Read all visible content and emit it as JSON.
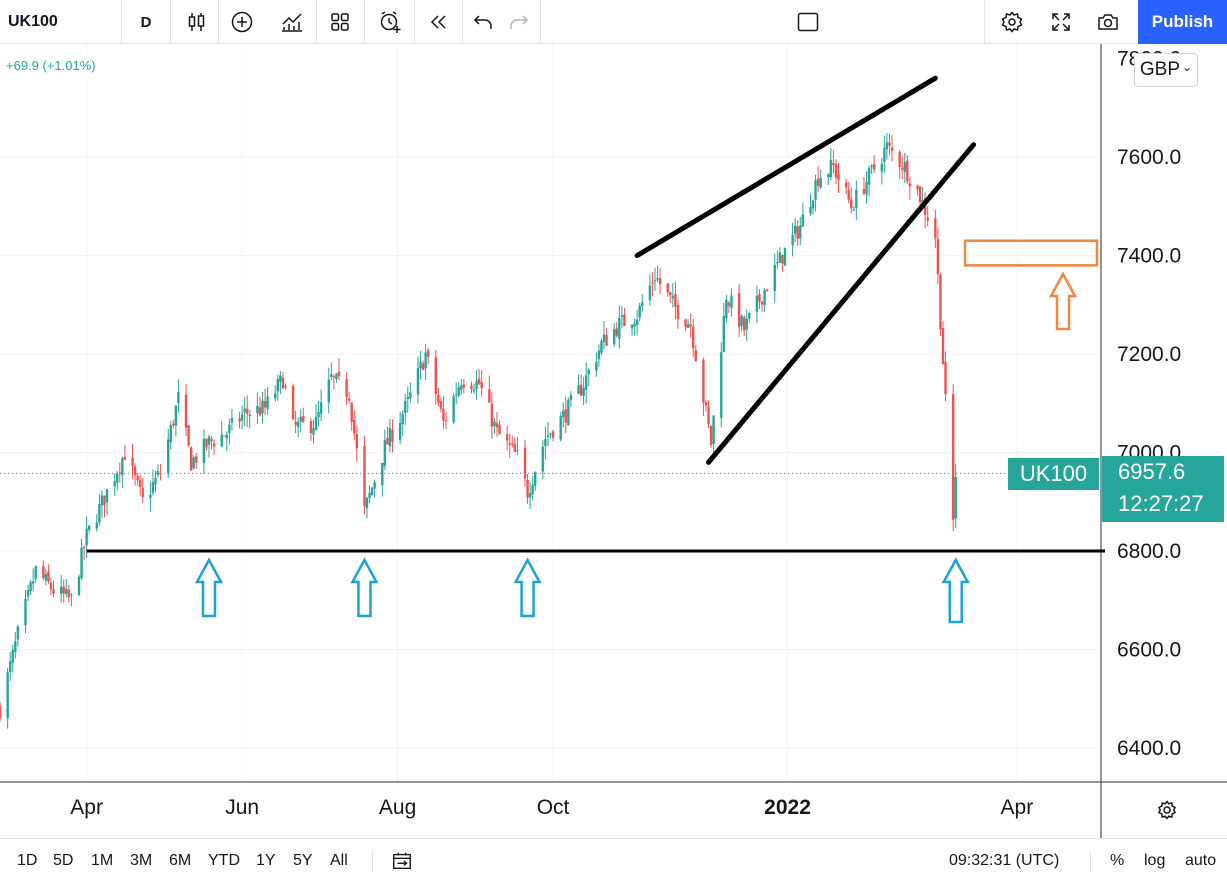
{
  "toolbar": {
    "symbol": "UK100",
    "interval": "D",
    "publish_label": "Publish",
    "icons": [
      "candles-icon",
      "add-indicator-icon",
      "indicators-icon",
      "layout-icon",
      "alert-icon",
      "replay-icon",
      "undo-icon",
      "redo-icon",
      "rectangle-icon",
      "settings-icon",
      "fullscreen-icon",
      "camera-icon"
    ]
  },
  "legend": {
    "change": "+69.9 (+1.01%)",
    "currency": "GBP",
    "currency_chevron": "⌄"
  },
  "price_scale": {
    "last_price_label": "6957.6",
    "countdown": "12:27:27",
    "symbol_label": "UK100"
  },
  "bottom": {
    "ranges": [
      "1D",
      "5D",
      "1M",
      "3M",
      "6M",
      "YTD",
      "1Y",
      "5Y",
      "All"
    ],
    "clock": "09:32:31 (UTC)",
    "percent": "%",
    "log": "log",
    "auto": "auto"
  },
  "colors": {
    "up": "#26a69a",
    "down": "#ef5350",
    "accent": "#2962ff",
    "arrow_blue": "#1aa3d6",
    "arrow_orange": "#f0883e",
    "drawing": "#000000"
  },
  "chart_data": {
    "type": "candlestick",
    "symbol": "UK100",
    "ylim": [
      6340,
      7700
    ],
    "yticks": [
      6400,
      6600,
      6800,
      7000,
      7200,
      7400,
      7600
    ],
    "ytick_labels": [
      "6400.0",
      "6600.0",
      "6800.0",
      "7000.0",
      "7200.0",
      "7400.0",
      "7600.0"
    ],
    "xticks": [
      {
        "date": "2021-04-01",
        "label": "Apr",
        "bold": false
      },
      {
        "date": "2021-06-01",
        "label": "Jun",
        "bold": false
      },
      {
        "date": "2021-08-01",
        "label": "Aug",
        "bold": false
      },
      {
        "date": "2021-10-01",
        "label": "Oct",
        "bold": false
      },
      {
        "date": "2022-01-01",
        "label": "2022",
        "bold": true
      },
      {
        "date": "2022-04-01",
        "label": "Apr",
        "bold": false
      }
    ],
    "x_start": "2021-02-26",
    "x_end": "2022-05-04",
    "last_close": 6957.6,
    "price_path": [
      [
        "2021-02-26",
        6480
      ],
      [
        "2021-03-05",
        6630
      ],
      [
        "2021-03-12",
        6760
      ],
      [
        "2021-03-19",
        6720
      ],
      [
        "2021-03-26",
        6700
      ],
      [
        "2021-04-01",
        6830
      ],
      [
        "2021-04-09",
        6920
      ],
      [
        "2021-04-16",
        7000
      ],
      [
        "2021-04-23",
        6900
      ],
      [
        "2021-04-30",
        6960
      ],
      [
        "2021-05-07",
        7110
      ],
      [
        "2021-05-12",
        6980
      ],
      [
        "2021-05-19",
        7020
      ],
      [
        "2021-05-26",
        7040
      ],
      [
        "2021-06-02",
        7080
      ],
      [
        "2021-06-10",
        7090
      ],
      [
        "2021-06-17",
        7150
      ],
      [
        "2021-06-21",
        7050
      ],
      [
        "2021-06-30",
        7060
      ],
      [
        "2021-07-06",
        7150
      ],
      [
        "2021-07-13",
        7120
      ],
      [
        "2021-07-19",
        6880
      ],
      [
        "2021-07-27",
        7010
      ],
      [
        "2021-08-05",
        7100
      ],
      [
        "2021-08-12",
        7200
      ],
      [
        "2021-08-19",
        7060
      ],
      [
        "2021-08-26",
        7150
      ],
      [
        "2021-09-02",
        7140
      ],
      [
        "2021-09-09",
        7040
      ],
      [
        "2021-09-17",
        6990
      ],
      [
        "2021-09-21",
        6920
      ],
      [
        "2021-09-28",
        7030
      ],
      [
        "2021-10-06",
        7080
      ],
      [
        "2021-10-13",
        7140
      ],
      [
        "2021-10-20",
        7220
      ],
      [
        "2021-10-27",
        7260
      ],
      [
        "2021-11-03",
        7280
      ],
      [
        "2021-11-10",
        7360
      ],
      [
        "2021-11-17",
        7300
      ],
      [
        "2021-11-24",
        7260
      ],
      [
        "2021-11-30",
        7080
      ],
      [
        "2021-12-02",
        7020
      ],
      [
        "2021-12-08",
        7320
      ],
      [
        "2021-12-15",
        7250
      ],
      [
        "2021-12-22",
        7320
      ],
      [
        "2021-12-30",
        7400
      ],
      [
        "2022-01-06",
        7460
      ],
      [
        "2022-01-13",
        7560
      ],
      [
        "2022-01-19",
        7580
      ],
      [
        "2022-01-26",
        7500
      ],
      [
        "2022-02-02",
        7560
      ],
      [
        "2022-02-09",
        7620
      ],
      [
        "2022-02-16",
        7580
      ],
      [
        "2022-02-22",
        7520
      ],
      [
        "2022-02-28",
        7440
      ],
      [
        "2022-03-04",
        7100
      ],
      [
        "2022-03-07",
        6860
      ],
      [
        "2022-03-08",
        6957.6
      ]
    ],
    "annotations": {
      "support_line": 6800,
      "target_zone": [
        7380,
        7430
      ],
      "rising_wedge_upper": [
        [
          "2021-11-03",
          7400
        ],
        [
          "2022-02-28",
          7760
        ]
      ],
      "rising_wedge_lower": [
        [
          "2021-12-01",
          6980
        ],
        [
          "2022-03-15",
          7625
        ]
      ],
      "up_arrows_at": [
        "2021-05-19",
        "2021-07-19",
        "2021-09-21",
        "2022-03-08"
      ]
    }
  }
}
